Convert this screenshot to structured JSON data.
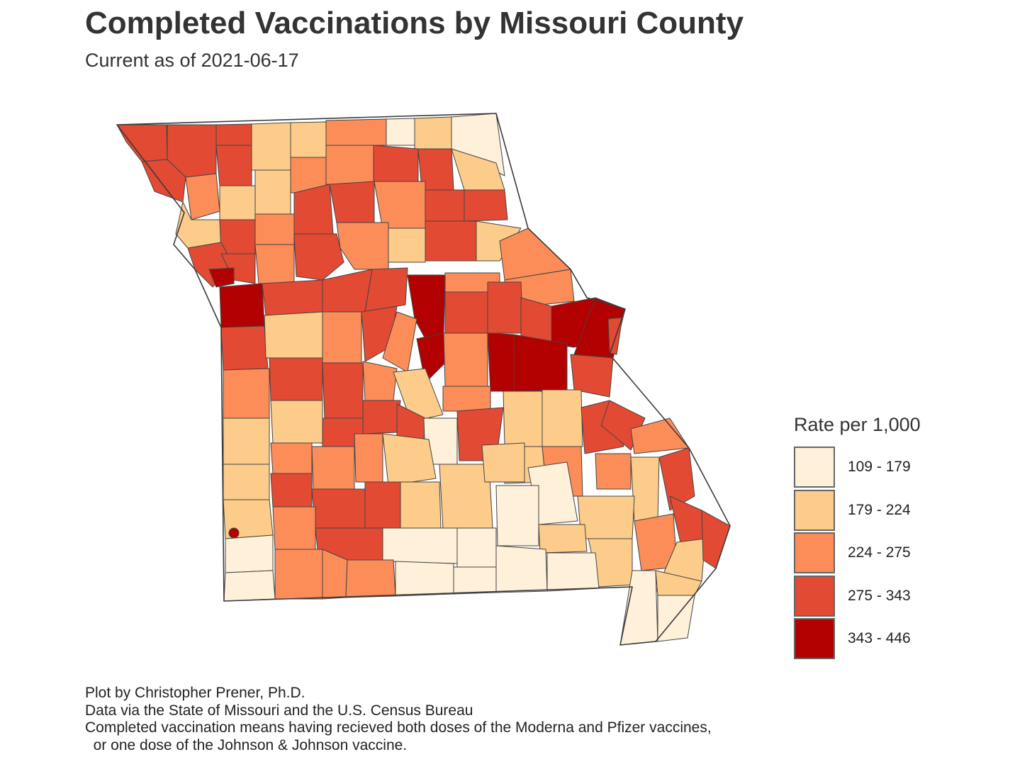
{
  "title": "Completed Vaccinations by Missouri County",
  "subtitle": "Current as of 2021-06-17",
  "legend": {
    "title": "Rate per 1,000",
    "classes": [
      {
        "label": "109 - 179",
        "color": "#fef0d9"
      },
      {
        "label": "179 - 224",
        "color": "#fdcc8a"
      },
      {
        "label": "224 - 275",
        "color": "#fc8d59"
      },
      {
        "label": "275 - 343",
        "color": "#e34a33"
      },
      {
        "label": "343 - 446",
        "color": "#b30000"
      }
    ]
  },
  "caption": [
    "Plot by Christopher Prener, Ph.D.",
    "Data via the State of Missouri and the U.S. Census Bureau",
    "Completed vaccination means having recieved both doses of the Moderna and Pfizer vaccines,",
    "  or one dose of the Johnson & Johnson vaccine."
  ],
  "map": {
    "region": "Missouri",
    "unit": "county",
    "border_color": "#444444"
  }
}
